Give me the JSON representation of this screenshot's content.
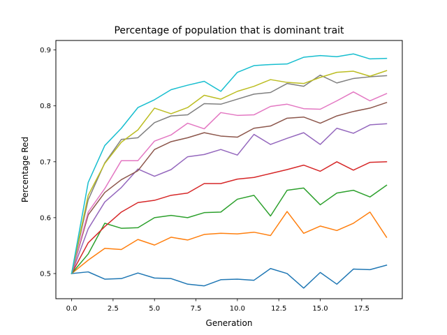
{
  "chart_data": {
    "type": "line",
    "title": "Percentage of population that is dominant trait",
    "xlabel": "Generation",
    "ylabel": "Percentage Red",
    "xlim": [
      -0.95,
      19.95
    ],
    "ylim": [
      0.455,
      0.917
    ],
    "xticks": [
      0.0,
      2.5,
      5.0,
      7.5,
      10.0,
      12.5,
      15.0,
      17.5
    ],
    "xtick_labels": [
      "0.0",
      "2.5",
      "5.0",
      "7.5",
      "10.0",
      "12.5",
      "15.0",
      "17.5"
    ],
    "yticks": [
      0.5,
      0.6,
      0.7,
      0.8,
      0.9
    ],
    "ytick_labels": [
      "0.5",
      "0.6",
      "0.7",
      "0.8",
      "0.9"
    ],
    "grid": false,
    "legend": "none",
    "x": [
      0,
      1,
      2,
      3,
      4,
      5,
      6,
      7,
      8,
      9,
      10,
      11,
      12,
      13,
      14,
      15,
      16,
      17,
      18,
      19
    ],
    "series": [
      {
        "color": "#1f77b4",
        "values": [
          0.5,
          0.503,
          0.49,
          0.491,
          0.501,
          0.492,
          0.491,
          0.481,
          0.478,
          0.489,
          0.49,
          0.488,
          0.509,
          0.5,
          0.474,
          0.502,
          0.481,
          0.508,
          0.507,
          0.515
        ]
      },
      {
        "color": "#ff7f0e",
        "values": [
          0.5,
          0.524,
          0.545,
          0.543,
          0.561,
          0.551,
          0.565,
          0.56,
          0.57,
          0.572,
          0.571,
          0.574,
          0.568,
          0.611,
          0.572,
          0.585,
          0.577,
          0.59,
          0.61,
          0.565
        ]
      },
      {
        "color": "#2ca02c",
        "values": [
          0.5,
          0.535,
          0.59,
          0.581,
          0.582,
          0.6,
          0.604,
          0.6,
          0.609,
          0.61,
          0.633,
          0.64,
          0.603,
          0.649,
          0.653,
          0.623,
          0.644,
          0.649,
          0.637,
          0.658
        ]
      },
      {
        "color": "#d62728",
        "values": [
          0.5,
          0.555,
          0.584,
          0.61,
          0.627,
          0.631,
          0.64,
          0.644,
          0.661,
          0.661,
          0.669,
          0.672,
          0.679,
          0.686,
          0.694,
          0.683,
          0.7,
          0.685,
          0.699,
          0.7
        ]
      },
      {
        "color": "#9467bd",
        "values": [
          0.5,
          0.58,
          0.628,
          0.654,
          0.687,
          0.674,
          0.686,
          0.709,
          0.713,
          0.722,
          0.712,
          0.749,
          0.731,
          0.742,
          0.752,
          0.731,
          0.76,
          0.751,
          0.766,
          0.768
        ]
      },
      {
        "color": "#8c564b",
        "values": [
          0.5,
          0.605,
          0.645,
          0.668,
          0.684,
          0.722,
          0.736,
          0.743,
          0.752,
          0.746,
          0.744,
          0.76,
          0.764,
          0.778,
          0.78,
          0.769,
          0.782,
          0.79,
          0.796,
          0.806
        ]
      },
      {
        "color": "#e377c2",
        "values": [
          0.5,
          0.61,
          0.652,
          0.702,
          0.702,
          0.737,
          0.748,
          0.769,
          0.759,
          0.788,
          0.783,
          0.784,
          0.799,
          0.803,
          0.795,
          0.794,
          0.809,
          0.825,
          0.809,
          0.822
        ]
      },
      {
        "color": "#7f7f7f",
        "values": [
          0.5,
          0.632,
          0.698,
          0.74,
          0.743,
          0.77,
          0.782,
          0.784,
          0.804,
          0.803,
          0.812,
          0.821,
          0.824,
          0.84,
          0.835,
          0.855,
          0.841,
          0.849,
          0.852,
          0.854
        ]
      },
      {
        "color": "#bcbd22",
        "values": [
          0.5,
          0.64,
          0.697,
          0.735,
          0.757,
          0.796,
          0.786,
          0.797,
          0.819,
          0.812,
          0.826,
          0.835,
          0.847,
          0.842,
          0.84,
          0.851,
          0.86,
          0.862,
          0.853,
          0.863
        ]
      },
      {
        "color": "#17becf",
        "values": [
          0.5,
          0.663,
          0.729,
          0.76,
          0.797,
          0.811,
          0.829,
          0.837,
          0.844,
          0.826,
          0.86,
          0.872,
          0.874,
          0.875,
          0.887,
          0.89,
          0.888,
          0.893,
          0.884,
          0.885
        ]
      }
    ]
  }
}
